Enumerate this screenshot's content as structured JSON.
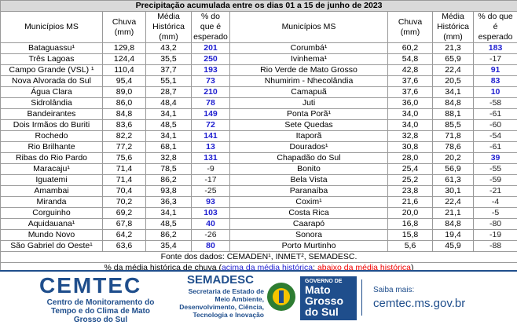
{
  "table": {
    "title": "Precipitação acumulada entre os dias 01 a 15 de junho de 2023",
    "headers": [
      "Municípios MS",
      "Chuva (mm)",
      "Média Histórica (mm)",
      "% do que é esperado",
      "Municípios MS",
      "Chuva (mm)",
      "Média Histórica (mm)",
      "% do que é esperado"
    ],
    "rows": [
      [
        "Bataguassu¹",
        "129,8",
        "43,2",
        "201",
        "Corumbá¹",
        "60,2",
        "21,3",
        "183"
      ],
      [
        "Três Lagoas",
        "124,4",
        "35,5",
        "250",
        "Ivinhema¹",
        "54,8",
        "65,9",
        "-17"
      ],
      [
        "Campo Grande (VSL) ¹",
        "110,4",
        "37,7",
        "193",
        "Rio Verde de Mato Grosso",
        "42,8",
        "22,4",
        "91"
      ],
      [
        "Nova Alvorada do Sul",
        "95,4",
        "55,1",
        "73",
        "Nhumirim - Nhecolândia",
        "37,6",
        "20,5",
        "83"
      ],
      [
        "Água Clara",
        "89,0",
        "28,7",
        "210",
        "Camapuã",
        "37,6",
        "34,1",
        "10"
      ],
      [
        "Sidrolândia",
        "86,0",
        "48,4",
        "78",
        "Juti",
        "36,0",
        "84,8",
        "-58"
      ],
      [
        "Bandeirantes",
        "84,8",
        "34,1",
        "149",
        "Ponta Porã¹",
        "34,0",
        "88,1",
        "-61"
      ],
      [
        "Dois Irmãos do Buriti",
        "83,6",
        "48,5",
        "72",
        "Sete Quedas",
        "34,0",
        "85,5",
        "-60"
      ],
      [
        "Rochedo",
        "82,2",
        "34,1",
        "141",
        "Itaporã",
        "32,8",
        "71,8",
        "-54"
      ],
      [
        "Rio Brilhante",
        "77,2",
        "68,1",
        "13",
        "Dourados¹",
        "30,8",
        "78,6",
        "-61"
      ],
      [
        "Ribas do Rio Pardo",
        "75,6",
        "32,8",
        "131",
        "Chapadão do Sul",
        "28,0",
        "20,2",
        "39"
      ],
      [
        "Maracaju¹",
        "71,4",
        "78,5",
        "-9",
        "Bonito",
        "25,4",
        "56,9",
        "-55"
      ],
      [
        "Iguatemi",
        "71,4",
        "86,2",
        "-17",
        "Bela Vista",
        "25,2",
        "61,3",
        "-59"
      ],
      [
        "Amambai",
        "70,4",
        "93,8",
        "-25",
        "Paranaíba",
        "23,8",
        "30,1",
        "-21"
      ],
      [
        "Miranda",
        "70,2",
        "36,3",
        "93",
        "Coxim¹",
        "21,6",
        "22,4",
        "-4"
      ],
      [
        "Corguinho",
        "69,2",
        "34,1",
        "103",
        "Costa Rica",
        "20,0",
        "21,1",
        "-5"
      ],
      [
        "Aquidauana¹",
        "67,8",
        "48,5",
        "40",
        "Caarapó",
        "16,8",
        "84,8",
        "-80"
      ],
      [
        "Mundo Novo",
        "64,2",
        "86,2",
        "-26",
        "Sonora",
        "15,8",
        "19,4",
        "-19"
      ],
      [
        "São Gabriel do Oeste¹",
        "63,6",
        "35,4",
        "80",
        "Porto Murtinho",
        "5,6",
        "45,9",
        "-88"
      ]
    ],
    "source": "Fonte dos dados: CEMADEN¹, INMET², SEMADESC.",
    "legend": {
      "prefix": "% da média histórica de chuva (",
      "above": "acima da média histórica",
      "separator": "; ",
      "below": "abaixo da média histórica",
      "suffix": ")"
    }
  },
  "footer": {
    "cemtec": "CEMTEC",
    "cemtec_sub": "Centro de Monitoramento do Tempo e do Clima de Mato Grosso do Sul",
    "semadesc": "SEMADESC",
    "semadesc_sub": "Secretaria de Estado de Meio Ambiente, Desenvolvimento, Ciência, Tecnologia e Inovação",
    "gov_small": "GOVERNO DE",
    "gov_big": "Mato Grosso do Sul",
    "more": "Saiba mais:",
    "url": "cemtec.ms.gov.br"
  }
}
